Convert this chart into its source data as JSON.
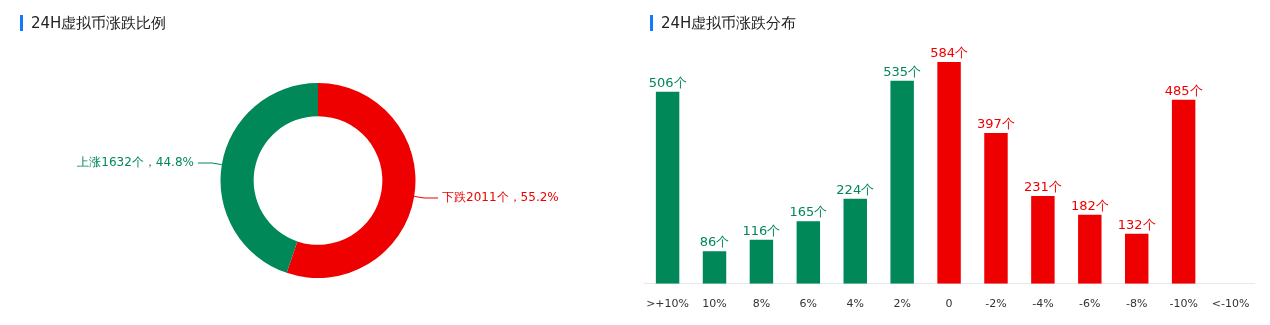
{
  "chart_data": [
    {
      "type": "donut",
      "title": "24H虚拟币涨跌比例",
      "categories": [
        "下跌",
        "上涨"
      ],
      "values": [
        2011,
        1632
      ],
      "colors": [
        "#ee0000",
        "#008858"
      ],
      "value_labels": [
        "2011个，55.2%",
        "1632个，44.8%"
      ]
    },
    {
      "type": "bar",
      "title": "24H虚拟币涨跌分布",
      "categories": [
        ">+10%",
        "10%",
        "8%",
        "6%",
        "4%",
        "2%",
        "0",
        "-2%",
        "-4%",
        "-6%",
        "-8%",
        "-10%",
        "<-10%"
      ],
      "values": [
        506,
        86,
        116,
        165,
        224,
        535,
        584,
        397,
        231,
        182,
        132,
        485,
        null
      ],
      "colors": [
        "#008858",
        "#008858",
        "#008858",
        "#008858",
        "#008858",
        "#008858",
        "#ee0000",
        "#ee0000",
        "#ee0000",
        "#ee0000",
        "#ee0000",
        "#ee0000",
        "#ee0000"
      ],
      "value_labels": [
        "506个",
        "86个",
        "116个",
        "165个",
        "224个",
        "535个",
        "584个",
        "397个",
        "231个",
        "182个",
        "132个",
        "485个",
        null
      ]
    }
  ]
}
